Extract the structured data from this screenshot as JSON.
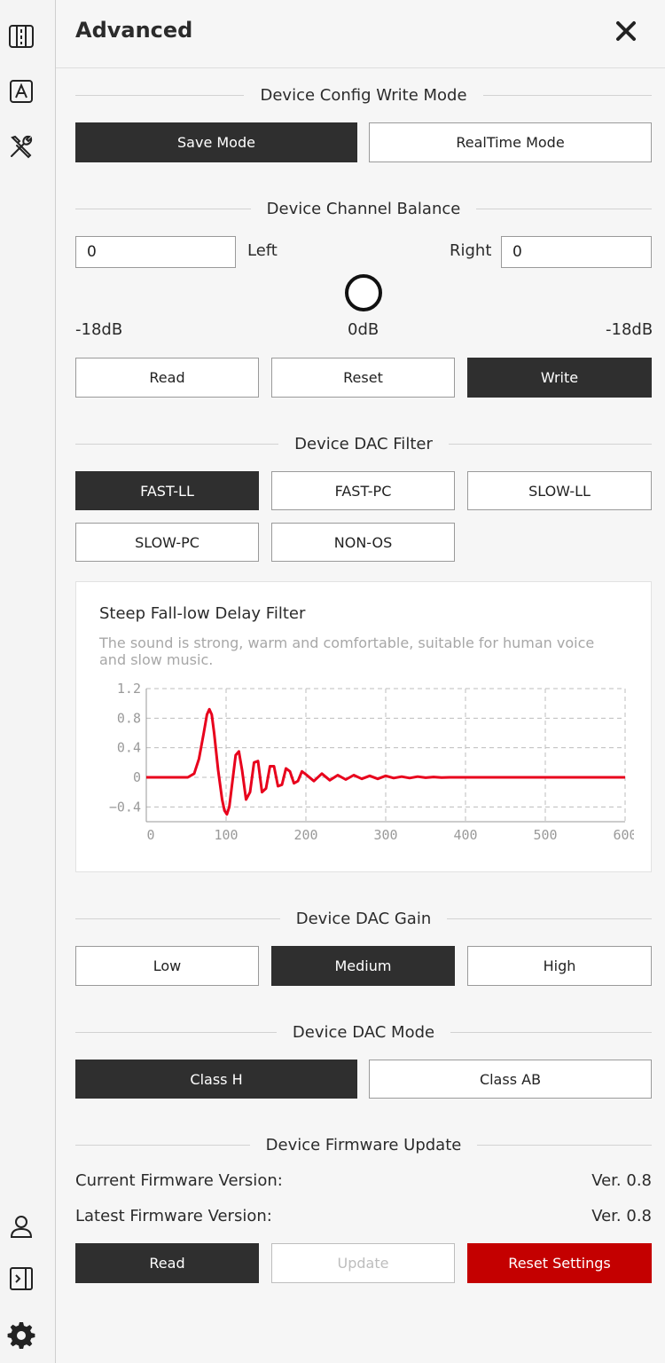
{
  "sidebar": {
    "icons": [
      "panel-columns-icon",
      "letter-a-icon",
      "tools-icon",
      "user-icon",
      "sidebar-expand-icon",
      "gear-icon"
    ]
  },
  "header": {
    "title": "Advanced",
    "close_icon": "close-icon"
  },
  "write_mode": {
    "title": "Device Config Write Mode",
    "save_label": "Save Mode",
    "realtime_label": "RealTime Mode",
    "selected": "Save Mode"
  },
  "balance": {
    "title": "Device Channel Balance",
    "left_value": "0",
    "left_label": "Left",
    "right_label": "Right",
    "right_value": "0",
    "min_left": "-18dB",
    "center": "0dB",
    "min_right": "-18dB",
    "read_label": "Read",
    "reset_label": "Reset",
    "write_label": "Write"
  },
  "dac_filter": {
    "title": "Device DAC Filter",
    "options": [
      "FAST-LL",
      "FAST-PC",
      "SLOW-LL",
      "SLOW-PC",
      "NON-OS"
    ],
    "selected": "FAST-LL",
    "card_title": "Steep Fall-low Delay Filter",
    "card_desc": "The sound is strong, warm and comfortable, suitable for human voice and slow music."
  },
  "chart_data": {
    "type": "line",
    "title": "",
    "xlabel": "",
    "ylabel": "",
    "xlim": [
      0,
      600
    ],
    "ylim": [
      -0.6,
      1.2
    ],
    "xticks": [
      "0",
      "100",
      "200",
      "300",
      "400",
      "500",
      "600"
    ],
    "yticks": [
      "1.2",
      "0.8",
      "0.4",
      "0",
      "−0.4"
    ],
    "grid": true,
    "series_color": "#e8001c",
    "series": [
      {
        "x": [
          0,
          52,
          60,
          66,
          72,
          76,
          79,
          82,
          85,
          90,
          95,
          98,
          101,
          104,
          108,
          112,
          116,
          120,
          125,
          130,
          135,
          140,
          145,
          150,
          155,
          160,
          165,
          170,
          175,
          180,
          185,
          190,
          195,
          200,
          210,
          220,
          230,
          240,
          250,
          260,
          270,
          280,
          290,
          300,
          310,
          320,
          330,
          340,
          350,
          360,
          370,
          380,
          600
        ],
        "y": [
          0,
          0,
          0.05,
          0.25,
          0.6,
          0.85,
          0.92,
          0.85,
          0.6,
          0.1,
          -0.3,
          -0.45,
          -0.5,
          -0.4,
          -0.05,
          0.3,
          0.35,
          0.1,
          -0.3,
          -0.2,
          0.2,
          0.22,
          -0.2,
          -0.15,
          0.15,
          0.15,
          -0.12,
          -0.1,
          0.12,
          0.08,
          -0.08,
          -0.05,
          0.08,
          0.04,
          -0.05,
          0.05,
          -0.04,
          0.03,
          -0.03,
          0.03,
          -0.02,
          0.02,
          -0.02,
          0.02,
          -0.01,
          0.01,
          -0.01,
          0.01,
          -0.005,
          0.005,
          -0.003,
          0,
          0
        ]
      }
    ]
  },
  "dac_gain": {
    "title": "Device DAC Gain",
    "options": [
      "Low",
      "Medium",
      "High"
    ],
    "selected": "Medium"
  },
  "dac_mode": {
    "title": "Device DAC Mode",
    "options": [
      "Class H",
      "Class AB"
    ],
    "selected": "Class H"
  },
  "firmware": {
    "title": "Device Firmware Update",
    "current_label": "Current Firmware Version:",
    "current_value": "Ver. 0.8",
    "latest_label": "Latest Firmware Version:",
    "latest_value": "Ver. 0.8",
    "read_label": "Read",
    "update_label": "Update",
    "reset_label": "Reset Settings"
  },
  "colors": {
    "dark": "#2f2f2f",
    "danger": "#c40000",
    "chart_line": "#e8001c"
  }
}
